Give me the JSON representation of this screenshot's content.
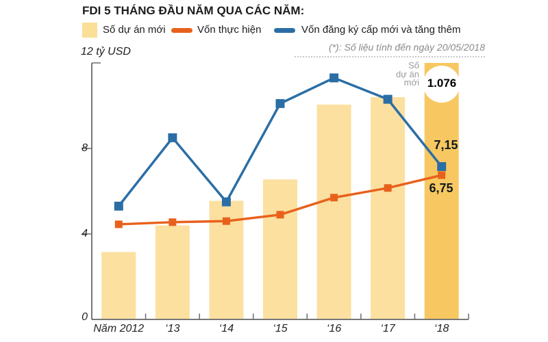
{
  "title": "FDI 5 THÁNG ĐẦU NĂM QUA CÁC NĂM:",
  "note": "(*): Số liệu tính đến ngày 20/05/2018",
  "legend": {
    "items": [
      {
        "label": "Số dự án mới",
        "swatch": "square",
        "color": "#fadf97"
      },
      {
        "label": "Vốn thực hiện",
        "swatch": "line",
        "color": "#e8611c"
      },
      {
        "label": "Vốn đăng ký cấp mới và tăng thêm",
        "swatch": "line",
        "color": "#2b6ea5"
      }
    ]
  },
  "axis": {
    "y_top_label": "12 tỷ USD",
    "y_unit": "tỷ USD"
  },
  "annotations": {
    "bar_callout": {
      "lines": [
        "Số",
        "dự án",
        "mới"
      ],
      "value": "1.076"
    },
    "blue_value": "7,15",
    "orange_value": "6,75"
  },
  "colors": {
    "bar": "#fbe0a0",
    "bar_highlight": "#f7c861",
    "orange_line": "#e8611c",
    "blue_line": "#2b6ea5",
    "axis": "#4a4a4a",
    "tick": "#6b6b6b",
    "note_gray": "#8a8a8a",
    "annotation_gray": "#9b9b9b"
  },
  "chart_data": {
    "type": "bar",
    "title": "FDI 5 THÁNG ĐẦU NĂM QUA CÁC NĂM:",
    "categories": [
      "Năm 2012",
      "‘13",
      "‘14",
      "‘15",
      "‘16",
      "‘17",
      "‘18"
    ],
    "series": [
      {
        "name": "Số dự án mới",
        "kind": "bar",
        "values": [
          3.15,
          4.4,
          5.55,
          6.55,
          10.05,
          10.4,
          12.0
        ],
        "color": "#fbe0a0",
        "highlight_index": 6,
        "highlight_color": "#f7c861",
        "label_2018_projects": "1.076"
      },
      {
        "name": "Vốn thực hiện",
        "kind": "line",
        "values": [
          4.45,
          4.55,
          4.6,
          4.9,
          5.7,
          6.15,
          6.75
        ],
        "color": "#e8611c",
        "last_label": "6,75"
      },
      {
        "name": "Vốn đăng ký cấp mới và tăng thêm",
        "kind": "line",
        "values": [
          5.3,
          8.5,
          5.5,
          10.1,
          11.3,
          10.3,
          7.15
        ],
        "color": "#2b6ea5",
        "last_label": "7,15"
      }
    ],
    "ylabel": "tỷ USD",
    "ylim": [
      0,
      12
    ],
    "yticks": [
      0,
      4,
      8,
      12
    ],
    "grid": false,
    "legend_position": "top",
    "footnote": "(*): Số liệu tính đến ngày 20/05/2018"
  }
}
